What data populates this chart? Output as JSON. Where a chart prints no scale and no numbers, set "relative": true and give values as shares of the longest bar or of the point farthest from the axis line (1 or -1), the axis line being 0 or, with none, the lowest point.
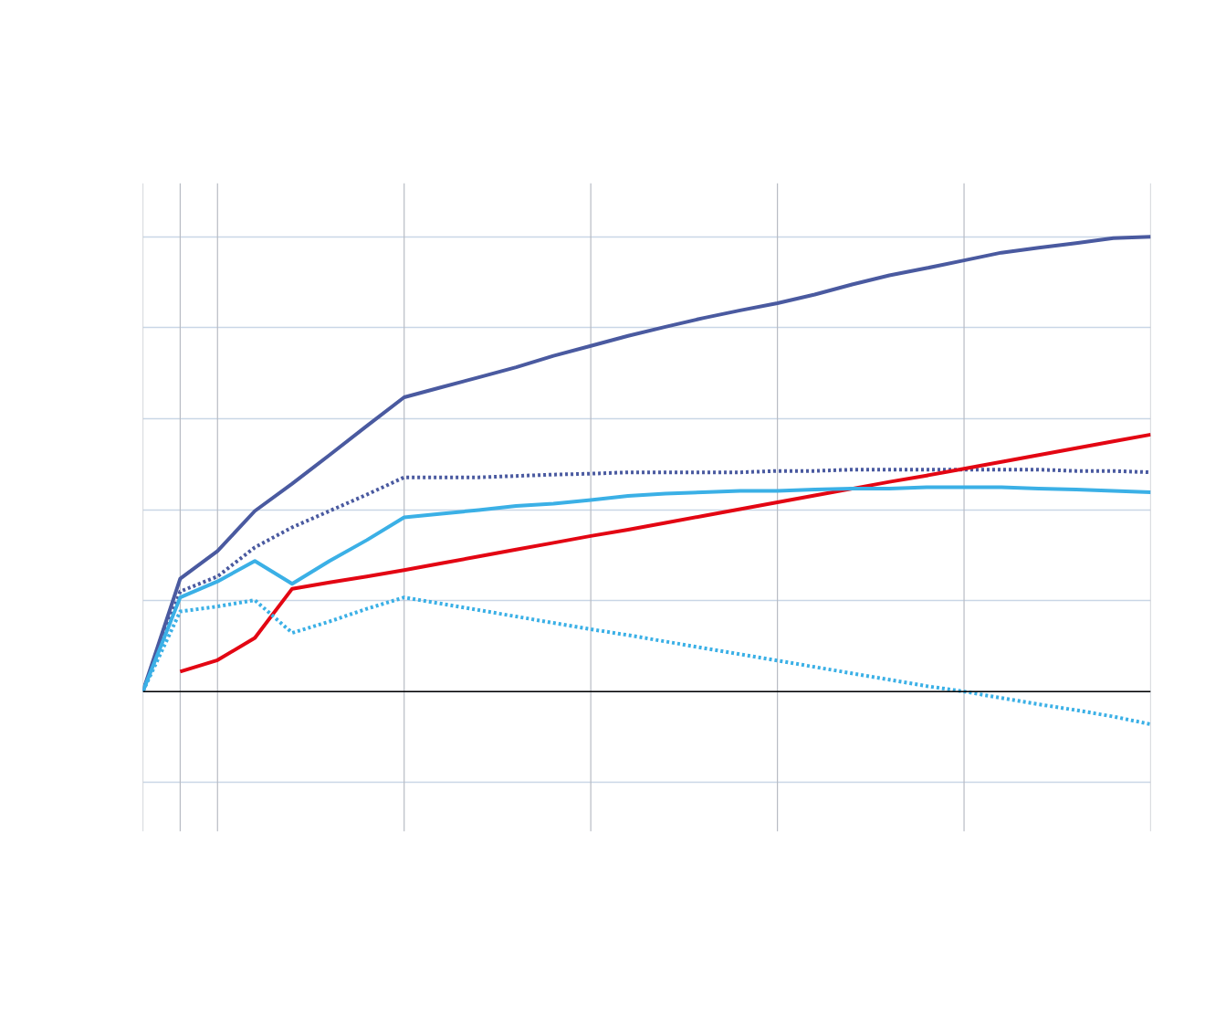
{
  "chart_data": {
    "type": "line",
    "relative": true,
    "grid": true,
    "categories": [
      null,
      null,
      null,
      null,
      null,
      null,
      null,
      null,
      null,
      null,
      null,
      null,
      null,
      null,
      null,
      null,
      null,
      null,
      null,
      null,
      null,
      null,
      null,
      null,
      null,
      null,
      null,
      null
    ],
    "series": [
      {
        "color": "#4a5aa0",
        "line_style": "solid",
        "values": [
          0,
          0.248,
          0.309,
          0.397,
          0.457,
          0.52,
          0.584,
          0.647,
          0.669,
          0.691,
          0.713,
          0.738,
          0.76,
          0.782,
          0.802,
          0.821,
          0.838,
          0.854,
          0.873,
          0.895,
          0.915,
          0.931,
          0.948,
          0.965,
          0.976,
          0.986,
          0.997,
          1
        ]
      },
      {
        "color": "#4a5aa0",
        "line_style": "dotted",
        "values": [
          0,
          0.22,
          0.253,
          0.317,
          0.361,
          0.397,
          0.433,
          0.471,
          0.471,
          0.471,
          0.474,
          0.477,
          0.479,
          0.482,
          0.482,
          0.482,
          0.482,
          0.485,
          0.485,
          0.488,
          0.488,
          0.488,
          0.488,
          0.488,
          0.488,
          0.485,
          0.485,
          0.482
        ]
      },
      {
        "color": "#e30613",
        "line_style": "solid",
        "values": [
          null,
          0.044,
          0.069,
          0.118,
          0.226,
          0.24,
          0.253,
          0.267,
          0.282,
          0.297,
          0.312,
          0.327,
          0.342,
          0.356,
          0.371,
          0.386,
          0.401,
          0.416,
          0.431,
          0.446,
          0.461,
          0.475,
          0.49,
          0.505,
          0.52,
          0.535,
          0.55,
          0.565
        ]
      },
      {
        "color": "#3bb0e6",
        "line_style": "solid",
        "values": [
          0,
          0.207,
          0.242,
          0.287,
          0.237,
          0.287,
          0.333,
          0.383,
          0.391,
          0.399,
          0.408,
          0.413,
          0.421,
          0.43,
          0.435,
          0.438,
          0.441,
          0.441,
          0.444,
          0.446,
          0.446,
          0.449,
          0.449,
          0.449,
          0.446,
          0.444,
          0.441,
          0.438
        ]
      },
      {
        "color": "#3bb0e6",
        "line_style": "dotted",
        "values": [
          0,
          0.176,
          0.187,
          0.201,
          0.129,
          0.154,
          0.182,
          0.207,
          0.193,
          0.179,
          0.165,
          0.151,
          0.137,
          0.124,
          0.11,
          0.096,
          0.082,
          0.068,
          0.054,
          0.04,
          0.026,
          0.012,
          0,
          -0.014,
          -0.028,
          -0.041,
          -0.055,
          -0.072
        ]
      }
    ]
  }
}
